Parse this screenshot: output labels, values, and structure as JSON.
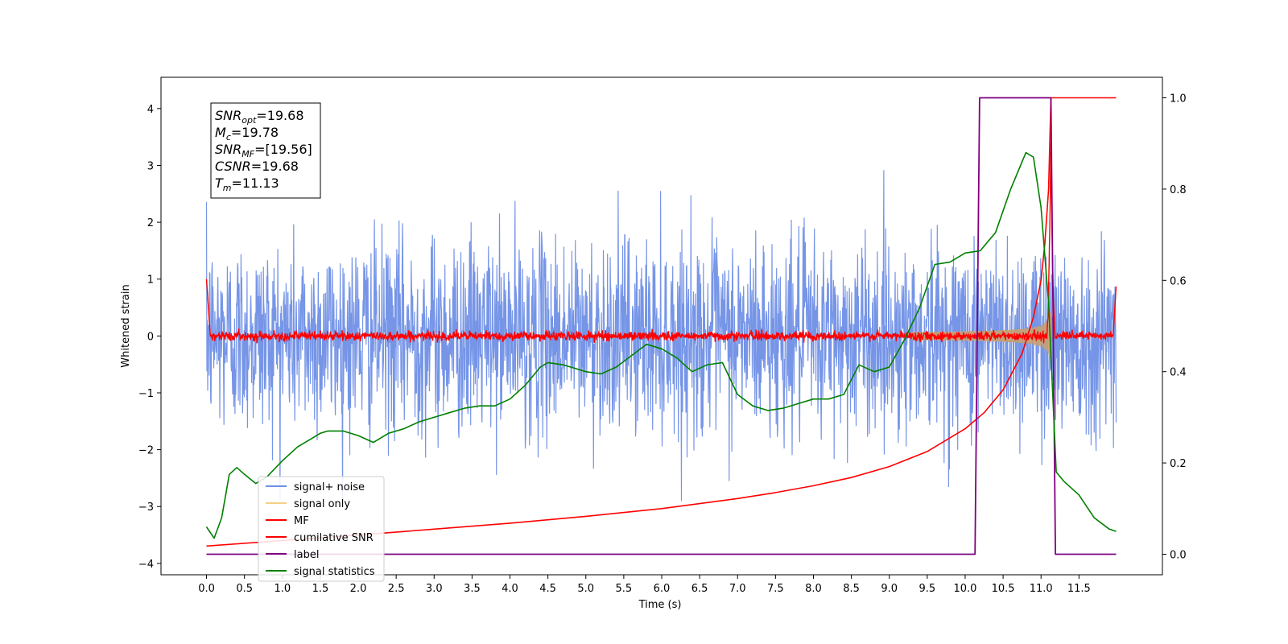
{
  "chart_data": {
    "type": "line",
    "title": "",
    "xlabel": "Time (s)",
    "ylabel": "Whitened strain",
    "xlim": [
      -0.6,
      12.6
    ],
    "ylim": [
      -4.2,
      4.55
    ],
    "y2lim": [
      -0.045,
      1.045
    ],
    "grid": false,
    "xticks": [
      0.0,
      0.5,
      1.0,
      1.5,
      2.0,
      2.5,
      3.0,
      3.5,
      4.0,
      4.5,
      5.0,
      5.5,
      6.0,
      6.5,
      7.0,
      7.5,
      8.0,
      8.5,
      9.0,
      9.5,
      10.0,
      10.5,
      11.0,
      11.5
    ],
    "xtick_labels": [
      "0.0",
      "0.5",
      "1.0",
      "1.5",
      "2.0",
      "2.5",
      "3.0",
      "3.5",
      "4.0",
      "4.5",
      "5.0",
      "5.5",
      "6.0",
      "6.5",
      "7.0",
      "7.5",
      "8.0",
      "8.5",
      "9.0",
      "9.5",
      "10.0",
      "10.5",
      "11.0",
      "11.5"
    ],
    "yticks": [
      -4,
      -3,
      -2,
      -1,
      0,
      1,
      2,
      3,
      4
    ],
    "ytick_labels": [
      "−4",
      "−3",
      "−2",
      "−1",
      "0",
      "1",
      "2",
      "3",
      "4"
    ],
    "y2ticks": [
      0.0,
      0.2,
      0.4,
      0.6,
      0.8,
      1.0
    ],
    "y2tick_labels": [
      "0.0",
      "0.2",
      "0.4",
      "0.6",
      "0.8",
      "1.0"
    ],
    "legend_position": "lower-left",
    "legend": [
      {
        "label": "signal+ noise",
        "color": "#6f8fe6"
      },
      {
        "label": "signal only",
        "color": "#f5d08a"
      },
      {
        "label": "MF",
        "color": "#ff0000"
      },
      {
        "label": "cumilative SNR",
        "color": "#ff0000"
      },
      {
        "label": "label",
        "color": "#800080"
      },
      {
        "label": "signal statistics",
        "color": "#008000"
      }
    ],
    "annotation": [
      {
        "name": "SNR",
        "sub": "opt",
        "value": "=19.68"
      },
      {
        "name": "M",
        "sub": "c",
        "value": "=19.78"
      },
      {
        "name": "SNR",
        "sub": "MF",
        "value": "=[19.56]"
      },
      {
        "name": "CSNR",
        "sub": "",
        "value": "=19.68"
      },
      {
        "name": "T",
        "sub": "m",
        "value": "=11.13"
      }
    ],
    "series": [
      {
        "name": "signal+ noise",
        "axis": "left",
        "color": "#6f8fe6",
        "x_range": [
          0.0,
          11.99
        ],
        "noise_std": 0.85,
        "envelope_max": [
          3.3,
          -2.9
        ]
      },
      {
        "name": "signal only",
        "axis": "left",
        "color": "#f5d08a",
        "chirp": {
          "t_merge": 11.13,
          "amp_start": 0.05,
          "amp_peak": 3.8,
          "visible_from": 9.3
        }
      },
      {
        "name": "MF",
        "axis": "left",
        "color": "#ff0000",
        "x_range": [
          0.0,
          11.99
        ],
        "baseline": 0.0,
        "noise_std": 0.04,
        "edge_values": [
          1.0,
          0.87
        ],
        "peak": {
          "x": 11.13,
          "y": 3.4
        }
      },
      {
        "name": "cumilative SNR",
        "axis": "right",
        "color": "#ff0000",
        "x": [
          0.0,
          1.0,
          2.0,
          3.0,
          4.0,
          5.0,
          6.0,
          7.0,
          7.5,
          8.0,
          8.5,
          9.0,
          9.5,
          10.0,
          10.25,
          10.5,
          10.75,
          10.9,
          11.0,
          11.05,
          11.1,
          11.13,
          11.99
        ],
        "values": [
          0.018,
          0.03,
          0.042,
          0.055,
          0.068,
          0.083,
          0.1,
          0.122,
          0.135,
          0.15,
          0.168,
          0.192,
          0.225,
          0.275,
          0.31,
          0.36,
          0.44,
          0.52,
          0.6,
          0.68,
          0.8,
          1.0,
          1.0
        ]
      },
      {
        "name": "label",
        "axis": "right",
        "color": "#800080",
        "x": [
          0.0,
          10.13,
          10.19,
          11.13,
          11.19,
          11.99
        ],
        "values": [
          0.0,
          0.0,
          1.0,
          1.0,
          0.0,
          0.0
        ]
      },
      {
        "name": "signal statistics",
        "axis": "right",
        "color": "#008000",
        "x": [
          0.0,
          0.1,
          0.2,
          0.3,
          0.4,
          0.5,
          0.65,
          0.8,
          1.0,
          1.2,
          1.4,
          1.5,
          1.6,
          1.8,
          2.0,
          2.2,
          2.4,
          2.6,
          2.8,
          3.0,
          3.2,
          3.4,
          3.6,
          3.8,
          4.0,
          4.2,
          4.4,
          4.5,
          4.7,
          4.8,
          5.0,
          5.2,
          5.4,
          5.6,
          5.8,
          6.0,
          6.2,
          6.4,
          6.6,
          6.8,
          7.0,
          7.2,
          7.4,
          7.6,
          7.8,
          8.0,
          8.2,
          8.4,
          8.6,
          8.8,
          9.0,
          9.2,
          9.4,
          9.6,
          9.8,
          10.0,
          10.2,
          10.4,
          10.6,
          10.8,
          10.9,
          11.0,
          11.1,
          11.2,
          11.3,
          11.5,
          11.7,
          11.9,
          11.99
        ],
        "values": [
          0.06,
          0.035,
          0.08,
          0.175,
          0.19,
          0.175,
          0.155,
          0.17,
          0.205,
          0.235,
          0.255,
          0.265,
          0.27,
          0.27,
          0.26,
          0.245,
          0.265,
          0.275,
          0.29,
          0.3,
          0.31,
          0.32,
          0.325,
          0.325,
          0.34,
          0.37,
          0.41,
          0.42,
          0.415,
          0.41,
          0.4,
          0.395,
          0.41,
          0.435,
          0.46,
          0.45,
          0.43,
          0.4,
          0.415,
          0.42,
          0.35,
          0.325,
          0.315,
          0.32,
          0.33,
          0.34,
          0.34,
          0.35,
          0.415,
          0.4,
          0.41,
          0.47,
          0.54,
          0.635,
          0.64,
          0.66,
          0.665,
          0.705,
          0.8,
          0.88,
          0.87,
          0.76,
          0.55,
          0.18,
          0.16,
          0.13,
          0.08,
          0.055,
          0.05
        ]
      }
    ]
  }
}
